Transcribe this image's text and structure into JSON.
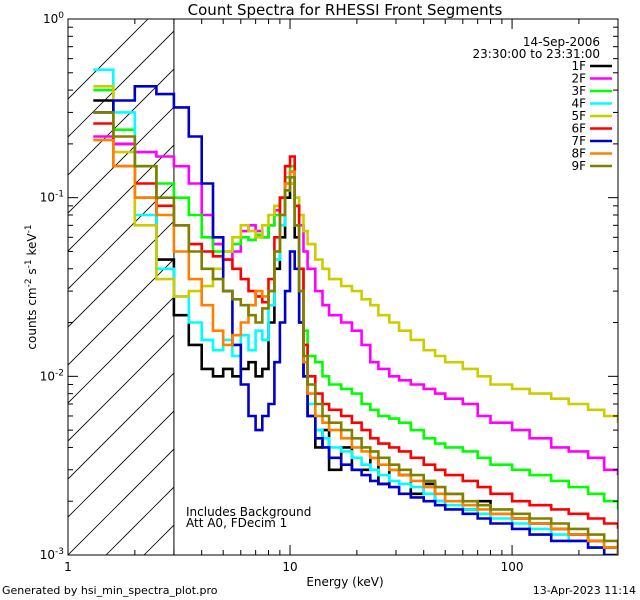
{
  "chart_data": {
    "type": "line",
    "title": "Count Spectra for RHESSI Front Segments",
    "xlabel": "Energy (keV)",
    "ylabel_parts": {
      "base": "counts cm",
      "e1": "-2",
      "s": " s",
      "e2": "-1",
      "kev": " keV",
      "e3": "-1"
    },
    "xscale": "log",
    "yscale": "log",
    "xlim": [
      1,
      300
    ],
    "ylim": [
      0.001,
      1
    ],
    "x_ticks": [
      {
        "value": 1,
        "label": "1"
      },
      {
        "value": 10,
        "label": "10"
      },
      {
        "value": 100,
        "label": "100"
      }
    ],
    "y_ticks": [
      {
        "value": 0.001,
        "base": "10",
        "exp": "-3"
      },
      {
        "value": 0.01,
        "base": "10",
        "exp": "-2"
      },
      {
        "value": 0.1,
        "base": "10",
        "exp": "-1"
      },
      {
        "value": 1,
        "base": "10",
        "exp": "0"
      }
    ],
    "hatched_region": {
      "x_from": 1,
      "x_to": 3
    },
    "legend_header": [
      "14-Sep-2006",
      "23:30:00 to 23:31:00"
    ],
    "legend_position": "top-right",
    "annotations": [
      "Includes Background",
      "Att A0, FDecim 1"
    ],
    "series": [
      {
        "name": "1F",
        "color": "#000000",
        "energy": [
          1.3,
          1.6,
          2.0,
          2.5,
          3.0,
          3.5,
          4.0,
          4.5,
          5.0,
          5.5,
          6.0,
          6.5,
          7.0,
          7.5,
          8.0,
          8.5,
          9.0,
          9.5,
          10.0,
          10.5,
          11.0,
          11.5,
          12.0,
          13,
          14,
          15,
          17,
          19,
          21,
          23,
          25,
          28,
          31,
          35,
          40,
          45,
          50,
          60,
          70,
          80,
          100,
          120,
          150,
          180,
          220,
          260,
          300
        ],
        "values": [
          0.35,
          0.2,
          0.1,
          0.045,
          0.022,
          0.015,
          0.011,
          0.01,
          0.011,
          0.01,
          0.011,
          0.012,
          0.01,
          0.011,
          0.02,
          0.04,
          0.06,
          0.1,
          0.12,
          0.06,
          0.02,
          0.01,
          0.006,
          0.004,
          0.005,
          0.003,
          0.004,
          0.003,
          0.003,
          0.0035,
          0.0025,
          0.003,
          0.0028,
          0.0022,
          0.0025,
          0.002,
          0.0022,
          0.0018,
          0.002,
          0.0017,
          0.0016,
          0.0015,
          0.0014,
          0.0013,
          0.0012,
          0.0011,
          0.001
        ]
      },
      {
        "name": "2F",
        "color": "#ff00ff",
        "energy": [
          1.3,
          1.6,
          2.0,
          2.5,
          3.0,
          3.5,
          4.0,
          4.5,
          5.0,
          5.5,
          6.0,
          6.5,
          7.0,
          7.5,
          8.0,
          8.5,
          9.0,
          9.5,
          10.0,
          10.5,
          11.0,
          11.5,
          12.0,
          13,
          14,
          15,
          17,
          19,
          21,
          23,
          25,
          28,
          31,
          35,
          40,
          45,
          50,
          60,
          70,
          80,
          100,
          120,
          150,
          180,
          220,
          260,
          300
        ],
        "values": [
          0.22,
          0.2,
          0.18,
          0.17,
          0.15,
          0.12,
          0.08,
          0.055,
          0.045,
          0.05,
          0.065,
          0.07,
          0.065,
          0.06,
          0.07,
          0.085,
          0.1,
          0.12,
          0.14,
          0.1,
          0.07,
          0.05,
          0.04,
          0.03,
          0.025,
          0.022,
          0.02,
          0.018,
          0.015,
          0.012,
          0.011,
          0.01,
          0.0095,
          0.009,
          0.0085,
          0.008,
          0.0075,
          0.007,
          0.006,
          0.0055,
          0.005,
          0.0045,
          0.004,
          0.0038,
          0.0035,
          0.003,
          0.0028
        ]
      },
      {
        "name": "3F",
        "color": "#00ff00",
        "energy": [
          1.3,
          1.6,
          2.0,
          2.5,
          3.0,
          3.5,
          4.0,
          4.5,
          5.0,
          5.5,
          6.0,
          6.5,
          7.0,
          7.5,
          8.0,
          8.5,
          9.0,
          9.5,
          10.0,
          10.5,
          11.0,
          11.5,
          12.0,
          13,
          14,
          15,
          17,
          19,
          21,
          23,
          25,
          28,
          31,
          35,
          40,
          45,
          50,
          60,
          70,
          80,
          100,
          120,
          150,
          180,
          220,
          260,
          300
        ],
        "values": [
          0.4,
          0.24,
          0.15,
          0.12,
          0.1,
          0.08,
          0.06,
          0.05,
          0.05,
          0.055,
          0.06,
          0.058,
          0.062,
          0.06,
          0.07,
          0.08,
          0.1,
          0.13,
          0.15,
          0.09,
          0.04,
          0.018,
          0.013,
          0.012,
          0.01,
          0.009,
          0.0085,
          0.008,
          0.007,
          0.0065,
          0.006,
          0.0058,
          0.0055,
          0.005,
          0.0045,
          0.0042,
          0.004,
          0.0038,
          0.0035,
          0.0032,
          0.003,
          0.0028,
          0.0026,
          0.0024,
          0.0022,
          0.002,
          0.0018
        ]
      },
      {
        "name": "4F",
        "color": "#00ffff",
        "energy": [
          1.3,
          1.6,
          2.0,
          2.5,
          3.0,
          3.5,
          4.0,
          4.5,
          5.0,
          5.5,
          6.0,
          6.5,
          7.0,
          7.5,
          8.0,
          8.5,
          9.0,
          9.5,
          10.0,
          10.5,
          11.0,
          11.5,
          12.0,
          13,
          14,
          15,
          17,
          19,
          21,
          23,
          25,
          28,
          31,
          35,
          40,
          45,
          50,
          60,
          70,
          80,
          100,
          120,
          150,
          180,
          220,
          260,
          300
        ],
        "values": [
          0.52,
          0.3,
          0.08,
          0.04,
          0.028,
          0.02,
          0.016,
          0.014,
          0.016,
          0.013,
          0.017,
          0.014,
          0.018,
          0.016,
          0.025,
          0.045,
          0.07,
          0.11,
          0.14,
          0.07,
          0.03,
          0.012,
          0.007,
          0.005,
          0.0045,
          0.004,
          0.0038,
          0.0035,
          0.0032,
          0.003,
          0.0028,
          0.0026,
          0.0025,
          0.0024,
          0.0022,
          0.002,
          0.0019,
          0.0018,
          0.0017,
          0.0016,
          0.0015,
          0.0014,
          0.0013,
          0.0012,
          0.0011,
          0.001,
          0.001
        ]
      },
      {
        "name": "5F",
        "color": "#cccc00",
        "energy": [
          1.3,
          1.6,
          2.0,
          2.5,
          3.0,
          3.5,
          4.0,
          4.5,
          5.0,
          5.5,
          6.0,
          6.5,
          7.0,
          7.5,
          8.0,
          8.5,
          9.0,
          9.5,
          10.0,
          10.5,
          11.0,
          11.5,
          12.0,
          13,
          14,
          15,
          17,
          19,
          21,
          23,
          25,
          28,
          31,
          35,
          40,
          45,
          50,
          60,
          70,
          80,
          100,
          120,
          150,
          180,
          220,
          260,
          300
        ],
        "values": [
          0.42,
          0.18,
          0.07,
          0.035,
          0.028,
          0.03,
          0.032,
          0.04,
          0.05,
          0.06,
          0.07,
          0.065,
          0.06,
          0.07,
          0.08,
          0.09,
          0.1,
          0.11,
          0.12,
          0.1,
          0.08,
          0.065,
          0.055,
          0.045,
          0.04,
          0.035,
          0.032,
          0.03,
          0.027,
          0.025,
          0.022,
          0.02,
          0.018,
          0.016,
          0.014,
          0.013,
          0.012,
          0.011,
          0.01,
          0.009,
          0.0085,
          0.008,
          0.0075,
          0.007,
          0.0065,
          0.006,
          0.0055
        ]
      },
      {
        "name": "6F",
        "color": "#ff0000",
        "energy": [
          1.3,
          1.6,
          2.0,
          2.5,
          3.0,
          3.5,
          4.0,
          4.5,
          5.0,
          5.5,
          6.0,
          6.5,
          7.0,
          7.5,
          8.0,
          8.5,
          9.0,
          9.5,
          10.0,
          10.5,
          11.0,
          11.5,
          12.0,
          13,
          14,
          15,
          17,
          19,
          21,
          23,
          25,
          28,
          31,
          35,
          40,
          45,
          50,
          60,
          70,
          80,
          100,
          120,
          150,
          180,
          220,
          260,
          300
        ],
        "values": [
          0.26,
          0.15,
          0.12,
          0.09,
          0.07,
          0.055,
          0.05,
          0.047,
          0.045,
          0.04,
          0.035,
          0.03,
          0.028,
          0.026,
          0.035,
          0.06,
          0.1,
          0.15,
          0.17,
          0.09,
          0.04,
          0.015,
          0.01,
          0.008,
          0.007,
          0.0065,
          0.006,
          0.0055,
          0.005,
          0.0045,
          0.0042,
          0.004,
          0.0038,
          0.0035,
          0.0032,
          0.003,
          0.0028,
          0.0026,
          0.0024,
          0.0022,
          0.002,
          0.0019,
          0.0018,
          0.0017,
          0.0016,
          0.0015,
          0.0014
        ]
      },
      {
        "name": "7F",
        "color": "#0000cc",
        "energy": [
          1.3,
          1.6,
          2.0,
          2.5,
          3.0,
          3.5,
          4.0,
          4.5,
          5.0,
          5.5,
          6.0,
          6.5,
          7.0,
          7.5,
          8.0,
          8.5,
          9.0,
          9.5,
          10.0,
          10.5,
          11.0,
          11.5,
          12.0,
          13,
          14,
          15,
          17,
          19,
          21,
          23,
          25,
          28,
          31,
          35,
          40,
          45,
          50,
          60,
          70,
          80,
          100,
          120,
          150,
          180,
          220,
          260,
          300
        ],
        "values": [
          0.3,
          0.35,
          0.42,
          0.38,
          0.32,
          0.22,
          0.12,
          0.06,
          0.03,
          0.015,
          0.009,
          0.006,
          0.005,
          0.006,
          0.007,
          0.012,
          0.02,
          0.03,
          0.05,
          0.04,
          0.02,
          0.01,
          0.006,
          0.0045,
          0.004,
          0.0035,
          0.0032,
          0.003,
          0.0028,
          0.0026,
          0.0025,
          0.0024,
          0.0022,
          0.0021,
          0.002,
          0.0019,
          0.0018,
          0.0017,
          0.0016,
          0.0015,
          0.0014,
          0.0013,
          0.0012,
          0.0012,
          0.0011,
          0.001,
          0.001
        ]
      },
      {
        "name": "8F",
        "color": "#ff8000",
        "energy": [
          1.3,
          1.6,
          2.0,
          2.5,
          3.0,
          3.5,
          4.0,
          4.5,
          5.0,
          5.5,
          6.0,
          6.5,
          7.0,
          7.5,
          8.0,
          8.5,
          9.0,
          9.5,
          10.0,
          10.5,
          11.0,
          11.5,
          12.0,
          13,
          14,
          15,
          17,
          19,
          21,
          23,
          25,
          28,
          31,
          35,
          40,
          45,
          50,
          60,
          70,
          80,
          100,
          120,
          150,
          180,
          220,
          260,
          300
        ],
        "values": [
          0.21,
          0.15,
          0.1,
          0.08,
          0.05,
          0.035,
          0.025,
          0.018,
          0.015,
          0.017,
          0.02,
          0.025,
          0.03,
          0.028,
          0.03,
          0.05,
          0.08,
          0.12,
          0.14,
          0.07,
          0.03,
          0.012,
          0.008,
          0.006,
          0.0055,
          0.005,
          0.0045,
          0.004,
          0.0038,
          0.0035,
          0.0032,
          0.003,
          0.0028,
          0.0026,
          0.0024,
          0.0022,
          0.002,
          0.0019,
          0.0018,
          0.0017,
          0.0016,
          0.0015,
          0.0014,
          0.0013,
          0.0012,
          0.0011,
          0.001
        ]
      },
      {
        "name": "9F",
        "color": "#808000",
        "energy": [
          1.3,
          1.6,
          2.0,
          2.5,
          3.0,
          3.5,
          4.0,
          4.5,
          5.0,
          5.5,
          6.0,
          6.5,
          7.0,
          7.5,
          8.0,
          8.5,
          9.0,
          9.5,
          10.0,
          10.5,
          11.0,
          11.5,
          12.0,
          13,
          14,
          15,
          17,
          19,
          21,
          23,
          25,
          28,
          31,
          35,
          40,
          45,
          50,
          60,
          70,
          80,
          100,
          120,
          150,
          180,
          220,
          260,
          300
        ],
        "values": [
          0.3,
          0.22,
          0.15,
          0.1,
          0.07,
          0.05,
          0.04,
          0.035,
          0.03,
          0.027,
          0.025,
          0.022,
          0.02,
          0.024,
          0.03,
          0.05,
          0.08,
          0.11,
          0.13,
          0.07,
          0.03,
          0.013,
          0.009,
          0.007,
          0.006,
          0.0055,
          0.005,
          0.0045,
          0.004,
          0.0038,
          0.0035,
          0.0032,
          0.003,
          0.0028,
          0.0026,
          0.0024,
          0.0022,
          0.002,
          0.0019,
          0.0018,
          0.0017,
          0.0016,
          0.0015,
          0.0014,
          0.0013,
          0.0012,
          0.0011
        ]
      }
    ]
  },
  "footer": {
    "left": "Generated by hsi_min_spectra_plot.pro",
    "right": "13-Apr-2023 11:14"
  }
}
